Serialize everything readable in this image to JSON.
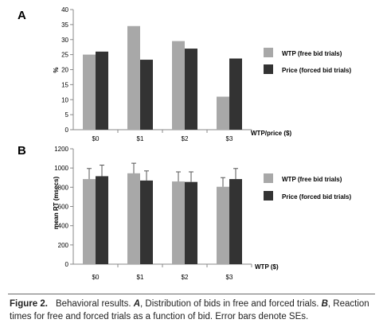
{
  "figure": {
    "caption_label": "Figure 2.",
    "caption_text_parts": [
      "Behavioral results. ",
      "A",
      ", Distribution of bids in free and forced trials. ",
      "B",
      ", Reaction times for free and forced trials as a function of bid. Error bars denote SEs."
    ]
  },
  "colors": {
    "free": "#a8a8a8",
    "forced": "#333333",
    "axis": "#888888",
    "error_bar": "#555555"
  },
  "chart_data": [
    {
      "panel": "A",
      "type": "bar",
      "categories": [
        "$0",
        "$1",
        "$2",
        "$3"
      ],
      "series": [
        {
          "name": "WTP (free bid trials)",
          "values": [
            25,
            34.5,
            29.5,
            11
          ]
        },
        {
          "name": "Price (forced bid trials)",
          "values": [
            26,
            23.3,
            27,
            23.7
          ]
        }
      ],
      "xlabel": "WTP/price ($)",
      "ylabel": "%",
      "ylim": [
        0,
        40
      ],
      "yticks": [
        0,
        5,
        10,
        15,
        20,
        25,
        30,
        35,
        40
      ],
      "grid": false,
      "legend_position": "right"
    },
    {
      "panel": "B",
      "type": "bar",
      "categories": [
        "$0",
        "$1",
        "$2",
        "$3"
      ],
      "series": [
        {
          "name": "WTP (free bid trials)",
          "values": [
            885,
            945,
            860,
            805
          ],
          "errors": [
            110,
            105,
            100,
            95
          ]
        },
        {
          "name": "Price (forced bid trials)",
          "values": [
            915,
            870,
            855,
            885
          ],
          "errors": [
            115,
            100,
            105,
            110
          ]
        }
      ],
      "xlabel": "WTP ($)",
      "ylabel": "mean RT (msecs)",
      "ylim": [
        0,
        1200
      ],
      "yticks": [
        0,
        200,
        400,
        600,
        800,
        1000,
        1200
      ],
      "grid": false,
      "legend_position": "right"
    }
  ]
}
